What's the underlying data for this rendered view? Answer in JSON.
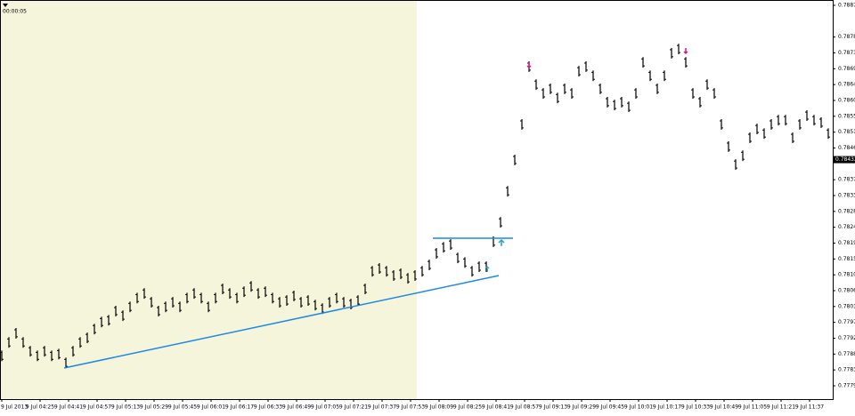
{
  "chart_data": {
    "type": "ohlc",
    "timer": "00:00:05",
    "color": "#000000",
    "ylim": [
      0.7779,
      0.7887
    ],
    "yticks": [
      {
        "value": 0.7887,
        "label": "0.78870"
      },
      {
        "value": 0.7878,
        "label": "0.78780"
      },
      0.78735,
      {
        "value": 0.7869,
        "label": "0.78690"
      },
      0.78645,
      {
        "value": 0.786,
        "label": "0.78600"
      },
      0.78555,
      {
        "value": 0.7851,
        "label": "0.78510"
      },
      0.78465,
      0.78375,
      {
        "value": 0.7833,
        "label": "0.78330"
      },
      0.78285,
      {
        "value": 0.7824,
        "label": "0.78240"
      },
      0.78195,
      {
        "value": 0.7815,
        "label": "0.78150"
      },
      0.78105,
      {
        "value": 0.7806,
        "label": "0.78060"
      },
      0.78015,
      {
        "value": 0.7797,
        "label": "0.77970"
      },
      0.77925,
      {
        "value": 0.7788,
        "label": "0.77880"
      },
      0.77835,
      {
        "value": 0.7779,
        "label": "0.77790"
      }
    ],
    "current_price": 0.78432,
    "xticks": [
      {
        "value": 0,
        "label": "9 Jul 2013"
      },
      {
        "value": 5.375,
        "label": "9 Jul 04:25"
      },
      {
        "value": 9.375,
        "label": "9 Jul 04:41"
      },
      {
        "value": 13.375,
        "label": "9 Jul 04:57"
      },
      {
        "value": 17.375,
        "label": "9 Jul 05:13"
      },
      {
        "value": 21.375,
        "label": "9 Jul 05:29"
      },
      {
        "value": 25.375,
        "label": "9 Jul 05:45"
      },
      {
        "value": 29.375,
        "label": "9 Jul 06:01"
      },
      {
        "value": 33.375,
        "label": "9 Jul 06:17"
      },
      {
        "value": 37.375,
        "label": "9 Jul 06:33"
      },
      {
        "value": 41.375,
        "label": "9 Jul 06:49"
      },
      {
        "value": 45.375,
        "label": "9 Jul 07:05"
      },
      {
        "value": 49.375,
        "label": "9 Jul 07:21"
      },
      {
        "value": 53.375,
        "label": "9 Jul 07:37"
      },
      {
        "value": 57.375,
        "label": "9 Jul 07:53"
      },
      {
        "value": 61.375,
        "label": "9 Jul 08:09"
      },
      {
        "value": 65.375,
        "label": "9 Jul 08:25"
      },
      {
        "value": 69.375,
        "label": "9 Jul 08:41"
      },
      {
        "value": 73.375,
        "label": "9 Jul 08:57"
      },
      {
        "value": 77.375,
        "label": "9 Jul 09:13"
      },
      {
        "value": 81.375,
        "label": "9 Jul 09:29"
      },
      {
        "value": 85.375,
        "label": "9 Jul 09:45"
      },
      {
        "value": 89.375,
        "label": "9 Jul 10:01"
      },
      {
        "value": 93.375,
        "label": "9 Jul 10:17"
      },
      {
        "value": 97.375,
        "label": "9 Jul 10:33"
      },
      {
        "value": 101.375,
        "label": "9 Jul 10:49"
      },
      {
        "value": 105.375,
        "label": "9 Jul 11:05"
      },
      {
        "value": 109.375,
        "label": "9 Jul 11:21"
      },
      {
        "value": 113.375,
        "label": "9 Jul 11:37"
      }
    ],
    "low": [
      0.7786,
      0.77898,
      0.77924,
      0.77898,
      0.77873,
      0.7786,
      0.77873,
      0.7786,
      0.77865,
      0.7784,
      0.77873,
      0.77898,
      0.77911,
      0.77936,
      0.77956,
      0.77961,
      0.77987,
      0.77974,
      0.77999,
      0.78024,
      0.78037,
      0.78012,
      0.77987,
      0.77999,
      0.78012,
      0.77999,
      0.78024,
      0.78037,
      0.78024,
      0.77999,
      0.78024,
      0.7805,
      0.78037,
      0.78024,
      0.78042,
      0.78057,
      0.78037,
      0.78042,
      0.78024,
      0.78012,
      0.78017,
      0.7803,
      0.78012,
      0.78017,
      0.78004,
      0.77994,
      0.78012,
      0.78024,
      0.78012,
      0.78007,
      0.78017,
      0.7805,
      0.781,
      0.78108,
      0.781,
      0.78088,
      0.78093,
      0.7808,
      0.78088,
      0.781,
      0.78118,
      0.78151,
      0.78168,
      0.78176,
      0.78138,
      0.78125,
      0.781,
      0.78113,
      0.78113,
      0.78184,
      0.78239,
      0.78327,
      0.78416,
      0.78517,
      0.78681,
      0.7863,
      0.78605,
      0.78618,
      0.78592,
      0.78618,
      0.78605,
      0.78668,
      0.78681,
      0.78655,
      0.78618,
      0.7858,
      0.78572,
      0.7858,
      0.78567,
      0.78605,
      0.78693,
      0.78655,
      0.78618,
      0.78655,
      0.78719,
      0.78731,
      0.78693,
      0.78605,
      0.7858,
      0.7863,
      0.78605,
      0.78517,
      0.78454,
      0.78403,
      0.78428,
      0.78479,
      0.78504,
      0.78491,
      0.78517,
      0.78529,
      0.78529,
      0.78479,
      0.78517,
      0.78542,
      0.78529,
      0.78522,
      0.78491
    ],
    "high": [
      0.7789,
      0.77928,
      0.77954,
      0.77928,
      0.77903,
      0.7789,
      0.77903,
      0.7789,
      0.77895,
      0.7787,
      0.77903,
      0.77928,
      0.77941,
      0.77966,
      0.77986,
      0.77991,
      0.78017,
      0.78004,
      0.78029,
      0.78054,
      0.78067,
      0.78042,
      0.78017,
      0.78029,
      0.78042,
      0.78029,
      0.78054,
      0.78067,
      0.78054,
      0.78029,
      0.78054,
      0.7808,
      0.78067,
      0.78054,
      0.78072,
      0.78087,
      0.78067,
      0.78072,
      0.78054,
      0.78042,
      0.78047,
      0.7806,
      0.78042,
      0.78047,
      0.78034,
      0.78024,
      0.78042,
      0.78054,
      0.78042,
      0.78037,
      0.78047,
      0.7808,
      0.7813,
      0.78138,
      0.7813,
      0.78118,
      0.78123,
      0.7811,
      0.78118,
      0.7813,
      0.78148,
      0.78181,
      0.78198,
      0.78206,
      0.78168,
      0.78155,
      0.7813,
      0.78143,
      0.78143,
      0.78214,
      0.78269,
      0.78357,
      0.78446,
      0.78547,
      0.78711,
      0.7866,
      0.78635,
      0.78648,
      0.78622,
      0.78648,
      0.78635,
      0.78698,
      0.78711,
      0.78685,
      0.78648,
      0.7861,
      0.78602,
      0.7861,
      0.78597,
      0.78635,
      0.78723,
      0.78685,
      0.78648,
      0.78685,
      0.78749,
      0.78761,
      0.78723,
      0.78635,
      0.7861,
      0.7866,
      0.78635,
      0.78547,
      0.78484,
      0.78433,
      0.78458,
      0.78509,
      0.78534,
      0.78521,
      0.78547,
      0.78559,
      0.78559,
      0.78509,
      0.78547,
      0.78572,
      0.78559,
      0.78552,
      0.78521
    ]
  }
}
